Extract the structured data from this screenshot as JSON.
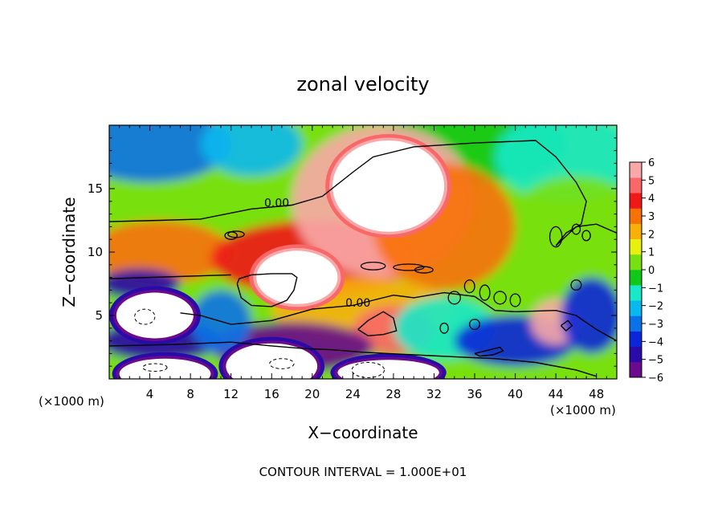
{
  "chart_data": {
    "type": "heatmap",
    "title": "zonal velocity",
    "xlabel": "X−coordinate",
    "ylabel": "Z−coordinate",
    "x_unit_label": "(×1000 m)",
    "y_unit_label": "(×1000 m)",
    "footer": "CONTOUR INTERVAL = 1.000E+01",
    "xlim": [
      0,
      50
    ],
    "ylim": [
      0,
      20
    ],
    "x_ticks": [
      4,
      8,
      12,
      16,
      20,
      24,
      28,
      32,
      36,
      40,
      44,
      48
    ],
    "x_tick_labels": [
      "4",
      "8",
      "12",
      "16",
      "20",
      "24",
      "28",
      "32",
      "36",
      "40",
      "44",
      "48"
    ],
    "y_ticks": [
      5,
      10,
      15
    ],
    "y_tick_labels": [
      "5",
      "10",
      "15"
    ],
    "contour_labels": [
      {
        "text": "0.00",
        "x": 16.5,
        "y": 13.9
      },
      {
        "text": "0.00",
        "x": 24.5,
        "y": 6.0
      }
    ],
    "colorbar": {
      "min": -6,
      "max": 6,
      "ticks": [
        6,
        5,
        4,
        3,
        2,
        1,
        0,
        -1,
        -2,
        -3,
        -4,
        -5,
        -6
      ],
      "tick_labels": [
        "6",
        "5",
        "4",
        "3",
        "2",
        "1",
        "0",
        "−1",
        "−2",
        "−3",
        "−4",
        "−5",
        "−6"
      ],
      "colors": [
        "#6a0a8c",
        "#2a0aa8",
        "#0a26d8",
        "#0a72e8",
        "#0ab8f0",
        "#18e8c8",
        "#10c818",
        "#78e010",
        "#e8f010",
        "#f8b008",
        "#f87008",
        "#f01818",
        "#f86868",
        "#f8a8a8"
      ]
    },
    "field_blobs": [
      {
        "x": 4,
        "y": 18.5,
        "rx": 8,
        "ry": 3,
        "v": -3.2
      },
      {
        "x": 14,
        "y": 18.5,
        "rx": 5,
        "ry": 2.5,
        "v": -1.8
      },
      {
        "x": 36,
        "y": 18.5,
        "rx": 9,
        "ry": 3,
        "v": -0.6
      },
      {
        "x": 45,
        "y": 17.5,
        "rx": 7,
        "ry": 3.5,
        "v": -1.5
      },
      {
        "x": 46,
        "y": 13,
        "rx": 6,
        "ry": 3,
        "v": 0.2
      },
      {
        "x": 42,
        "y": 8,
        "rx": 7,
        "ry": 2.5,
        "v": 0.8
      },
      {
        "x": 5,
        "y": 10,
        "rx": 7,
        "ry": 2.5,
        "v": 2.6
      },
      {
        "x": 20,
        "y": 9.5,
        "rx": 10,
        "ry": 3,
        "v": 4.2
      },
      {
        "x": 27,
        "y": 14,
        "rx": 9,
        "ry": 6,
        "v": 5.4
      },
      {
        "x": 33,
        "y": 12,
        "rx": 7,
        "ry": 5,
        "v": 3.2
      },
      {
        "x": 25,
        "y": 5.5,
        "rx": 9,
        "ry": 2.5,
        "v": 2.2
      },
      {
        "x": 28,
        "y": 3.8,
        "rx": 4,
        "ry": 2,
        "v": 4.6
      },
      {
        "x": 33,
        "y": 4,
        "rx": 5,
        "ry": 2.5,
        "v": -1.0
      },
      {
        "x": 40,
        "y": 3,
        "rx": 6,
        "ry": 2,
        "v": -3.8
      },
      {
        "x": 44,
        "y": 4.5,
        "rx": 2.5,
        "ry": 1.8,
        "v": 5.2
      },
      {
        "x": 47.5,
        "y": 5,
        "rx": 3,
        "ry": 3,
        "v": -3.6
      },
      {
        "x": 18,
        "y": 2.5,
        "rx": 8,
        "ry": 2,
        "v": -5.2
      },
      {
        "x": 5,
        "y": 3,
        "rx": 6,
        "ry": 1.6,
        "v": -4.5
      },
      {
        "x": 3,
        "y": 7.5,
        "rx": 4,
        "ry": 1.2,
        "v": -4.8
      },
      {
        "x": 11,
        "y": 4.5,
        "rx": 3,
        "ry": 2.5,
        "v": -3.0
      }
    ],
    "saturated_regions": [
      {
        "x": 27.5,
        "y": 15.2,
        "rx": 5.5,
        "ry": 3.6,
        "sign": 1
      },
      {
        "x": 18.5,
        "y": 8.0,
        "rx": 4.0,
        "ry": 2.1,
        "sign": 1
      },
      {
        "x": 4.5,
        "y": 5.0,
        "rx": 3.8,
        "ry": 1.8,
        "sign": -1
      },
      {
        "x": 5.5,
        "y": 0.4,
        "rx": 4.5,
        "ry": 1.2,
        "sign": -1
      },
      {
        "x": 16,
        "y": 1.0,
        "rx": 4.5,
        "ry": 1.8,
        "sign": -1
      },
      {
        "x": 27.5,
        "y": 0.5,
        "rx": 5,
        "ry": 1.0,
        "sign": -1
      }
    ]
  }
}
